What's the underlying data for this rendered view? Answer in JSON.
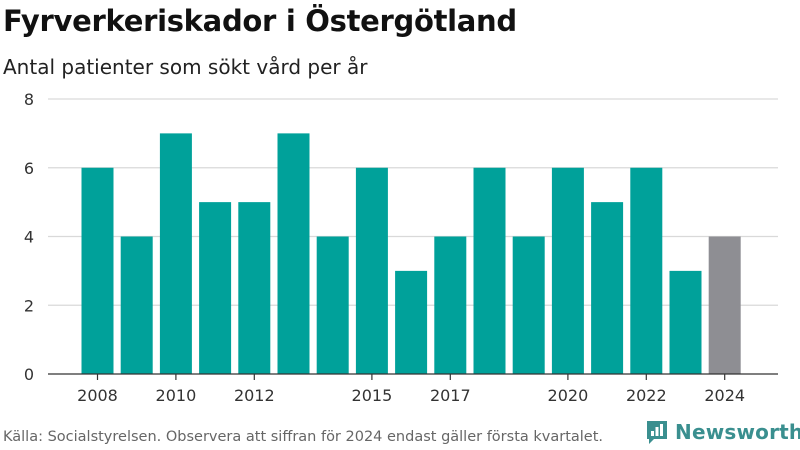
{
  "header": {
    "title": "Fyrverkeriskador i Östergötland",
    "subtitle": "Antal patienter som sökt vård per år"
  },
  "footer": {
    "source": "Källa: Socialstyrelsen. Observera att siffran för 2024 endast gäller första kvartalet.",
    "brand": "Newsworthy"
  },
  "colors": {
    "bar": "#00a19a",
    "bar_highlight": "#8e8e93",
    "grid": "#d9d9d9",
    "brand": "#3a8f8f"
  },
  "chart_data": {
    "type": "bar",
    "title": "Fyrverkeriskador i Östergötland",
    "subtitle": "Antal patienter som sökt vård per år",
    "categories": [
      "2008",
      "2009",
      "2010",
      "2011",
      "2012",
      "2013",
      "2014",
      "2015",
      "2016",
      "2017",
      "2018",
      "2019",
      "2020",
      "2021",
      "2022",
      "2023",
      "2024"
    ],
    "values": [
      6,
      4,
      7,
      5,
      5,
      7,
      4,
      6,
      3,
      4,
      6,
      4,
      6,
      5,
      6,
      3,
      4
    ],
    "highlight_categories": [
      "2024"
    ],
    "x_tick_labels": [
      "2008",
      "2010",
      "2012",
      "2015",
      "2017",
      "2020",
      "2022",
      "2024"
    ],
    "y_ticks": [
      0,
      2,
      4,
      6,
      8
    ],
    "ylim": [
      0,
      8
    ],
    "grid": true,
    "xlabel": "",
    "ylabel": ""
  }
}
